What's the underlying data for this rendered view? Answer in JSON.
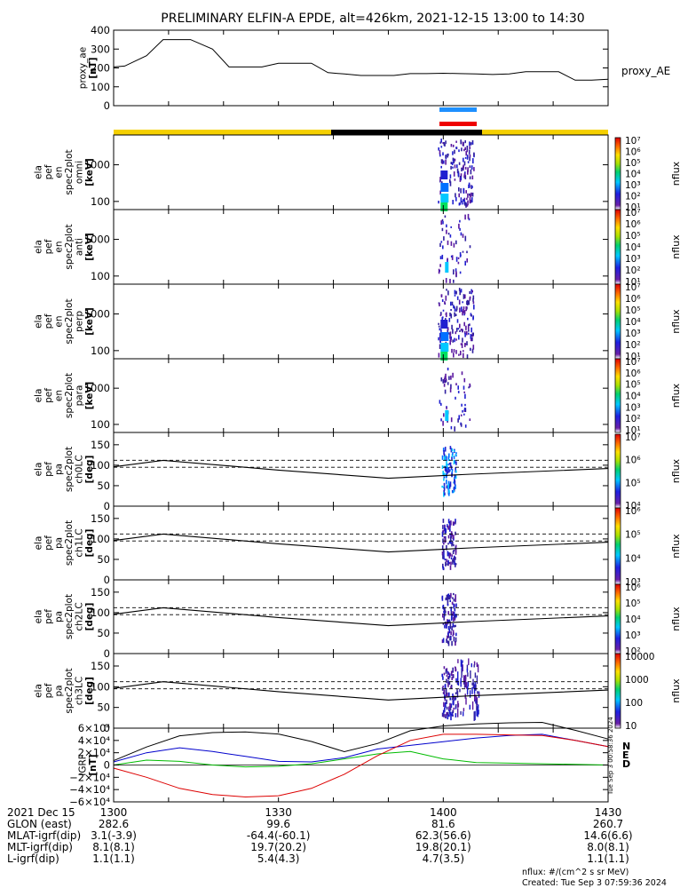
{
  "chart_data": {
    "type": "spectrogram",
    "title": "PRELIMINARY ELFIN-A EPDE, alt=426km, 2021-12-15 13:00 to 14:30",
    "xlim": [
      "2021-12-15 13:00",
      "2021-12-15 14:30"
    ],
    "colors": {
      "science_zone": "#1e90ff",
      "state_bar": "#ee0000",
      "phase_day": "#f5d000",
      "phase_night": "#000000",
      "igrf_n": "#0000cc",
      "igrf_e": "#00bb00",
      "igrf_d": "#dd0000"
    },
    "panels": [
      {
        "id": "proxy_ae",
        "type": "line",
        "ylabel_lines": [
          "proxy_ae",
          "[nT]"
        ],
        "ylim": [
          0,
          400
        ],
        "yticks": [
          "400",
          "300",
          "200",
          "100",
          "0"
        ],
        "legend": "proxy_AE",
        "x": [
          "13:00",
          "13:02",
          "13:06",
          "13:09",
          "13:12",
          "13:14",
          "13:18",
          "13:21",
          "13:24",
          "13:27",
          "13:30",
          "13:33",
          "13:36",
          "13:39",
          "13:42",
          "13:45",
          "13:48",
          "13:51",
          "13:54",
          "13:57",
          "14:00",
          "14:03",
          "14:06",
          "14:09",
          "14:12",
          "14:15",
          "14:18",
          "14:21",
          "14:24",
          "14:27",
          "14:30"
        ],
        "values": [
          205,
          210,
          265,
          350,
          350,
          350,
          300,
          205,
          205,
          205,
          225,
          225,
          225,
          175,
          168,
          160,
          160,
          160,
          170,
          170,
          172,
          170,
          168,
          165,
          168,
          180,
          180,
          180,
          135,
          135,
          140
        ]
      },
      {
        "id": "en_omni",
        "type": "spectrogram",
        "ylabel_lines": [
          "ela",
          "pef",
          "en",
          "spec2plot",
          "omni",
          "[keV]"
        ],
        "yscale": "log",
        "ylim": [
          60,
          6500
        ],
        "yticks": [
          "1000",
          "100"
        ],
        "colorbar_label": "nflux",
        "colorbar_range": [
          "10¹",
          "10⁷"
        ],
        "colorbar_ticks": [
          "10⁷",
          "10⁶",
          "10⁵",
          "10⁴",
          "10³",
          "10²",
          "10¹"
        ],
        "burst_time": "14:00"
      },
      {
        "id": "en_anti",
        "type": "spectrogram",
        "ylabel_lines": [
          "ela",
          "pef",
          "en",
          "spec2plot",
          "anti",
          "[keV]"
        ],
        "yscale": "log",
        "ylim": [
          60,
          6500
        ],
        "yticks": [
          "1000",
          "100"
        ],
        "colorbar_label": "nflux",
        "colorbar_range": [
          "10¹",
          "10⁷"
        ],
        "colorbar_ticks": [
          "10⁷",
          "10⁶",
          "10⁵",
          "10⁴",
          "10³",
          "10²",
          "10¹"
        ],
        "burst_time": "14:00"
      },
      {
        "id": "en_perp",
        "type": "spectrogram",
        "ylabel_lines": [
          "ela",
          "pef",
          "en",
          "spec2plot",
          "perp",
          "[keV]"
        ],
        "yscale": "log",
        "ylim": [
          60,
          6500
        ],
        "yticks": [
          "1000",
          "100"
        ],
        "colorbar_label": "nflux",
        "colorbar_range": [
          "10¹",
          "10⁷"
        ],
        "colorbar_ticks": [
          "10⁷",
          "10⁶",
          "10⁵",
          "10⁴",
          "10³",
          "10²",
          "10¹"
        ],
        "burst_time": "14:00"
      },
      {
        "id": "en_para",
        "type": "spectrogram",
        "ylabel_lines": [
          "ela",
          "pef",
          "en",
          "spec2plot",
          "para",
          "[keV]"
        ],
        "yscale": "log",
        "ylim": [
          60,
          6500
        ],
        "yticks": [
          "1000",
          "100"
        ],
        "colorbar_label": "nflux",
        "colorbar_range": [
          "10¹",
          "10⁷"
        ],
        "colorbar_ticks": [
          "10⁷",
          "10⁶",
          "10⁵",
          "10⁴",
          "10³",
          "10²",
          "10¹"
        ],
        "burst_time": "14:00"
      },
      {
        "id": "pa_ch0LC",
        "type": "pitch_angle",
        "ylabel_lines": [
          "ela",
          "pef",
          "pa",
          "spec2plot",
          "ch0LC",
          "[deg]"
        ],
        "ylim": [
          0,
          180
        ],
        "yticks": [
          "150",
          "100",
          "50",
          "0"
        ],
        "colorbar_label": "nflux",
        "colorbar_range": [
          "10³",
          "10⁷"
        ],
        "colorbar_ticks": [
          "10⁷",
          "10⁶",
          "10⁵",
          "10⁴"
        ],
        "burst_time": "14:00"
      },
      {
        "id": "pa_ch1LC",
        "type": "pitch_angle",
        "ylabel_lines": [
          "ela",
          "pef",
          "pa",
          "spec2plot",
          "ch1LC",
          "[deg]"
        ],
        "ylim": [
          0,
          180
        ],
        "yticks": [
          "150",
          "100",
          "50",
          "0"
        ],
        "colorbar_label": "nflux",
        "colorbar_range": [
          "10³",
          "10⁶"
        ],
        "colorbar_ticks": [
          "10⁶",
          "10⁵",
          "10⁴",
          "10³"
        ],
        "burst_time": "14:00"
      },
      {
        "id": "pa_ch2LC",
        "type": "pitch_angle",
        "ylabel_lines": [
          "ela",
          "pef",
          "pa",
          "spec2plot",
          "ch2LC",
          "[deg]"
        ],
        "ylim": [
          0,
          180
        ],
        "yticks": [
          "150",
          "100",
          "50",
          "0"
        ],
        "colorbar_label": "nflux",
        "colorbar_range": [
          "10²",
          "10⁶"
        ],
        "colorbar_ticks": [
          "10⁶",
          "10⁵",
          "10⁴",
          "10³",
          "10²"
        ],
        "burst_time": "14:00"
      },
      {
        "id": "pa_ch3LC",
        "type": "pitch_angle",
        "ylabel_lines": [
          "ela",
          "pef",
          "pa",
          "spec2plot",
          "ch3LC",
          "[deg]"
        ],
        "ylim": [
          0,
          180
        ],
        "yticks": [
          "150",
          "100",
          "50",
          "0"
        ],
        "colorbar_label": "nflux",
        "colorbar_range": [
          "10",
          "10000"
        ],
        "colorbar_ticks": [
          "10000",
          "1000",
          "100",
          "10"
        ],
        "burst_time": "14:00"
      },
      {
        "id": "igrf",
        "type": "line",
        "ylabel_lines": [
          "IGRF",
          "[nT]"
        ],
        "ylim": [
          -60000,
          60000
        ],
        "yticks": [
          "6×10⁴",
          "4×10⁴",
          "2×10⁴",
          "0",
          "−2×10⁴",
          "−4×10⁴",
          "−6×10⁴"
        ],
        "legend": [
          "N",
          "E",
          "D"
        ],
        "x": [
          "13:00",
          "13:06",
          "13:12",
          "13:18",
          "13:24",
          "13:30",
          "13:36",
          "13:42",
          "13:48",
          "13:54",
          "14:00",
          "14:06",
          "14:12",
          "14:18",
          "14:24",
          "14:30"
        ],
        "series": [
          {
            "name": "N",
            "values": [
              5000,
              20000,
              28000,
              22000,
              14000,
              6000,
              5000,
              12000,
              26000,
              32000,
              38000,
              44000,
              48000,
              50000,
              40000,
              30000
            ]
          },
          {
            "name": "E",
            "values": [
              0,
              8000,
              6000,
              0,
              -3000,
              -2000,
              2000,
              10000,
              18000,
              22000,
              10000,
              4000,
              3000,
              2000,
              1000,
              0
            ]
          },
          {
            "name": "D",
            "values": [
              -5000,
              -20000,
              -38000,
              -48000,
              -52000,
              -50000,
              -38000,
              -15000,
              15000,
              40000,
              50000,
              50000,
              49000,
              48000,
              40000,
              30000
            ]
          }
        ]
      }
    ],
    "dashed_reference": [
      95,
      112
    ],
    "ephemeris": {
      "header": "2021 Dec 15",
      "times": [
        "1300",
        "1330",
        "1400",
        "1430"
      ],
      "rows": [
        {
          "label": "GLON (east)",
          "values": [
            "282.6",
            "99.6",
            "81.6",
            "260.7"
          ]
        },
        {
          "label": "MLAT-igrf(dip)",
          "values": [
            "3.1(-3.9)",
            "-64.4(-60.1)",
            "62.3(56.6)",
            "14.6(6.6)"
          ]
        },
        {
          "label": "MLT-igrf(dip)",
          "values": [
            "8.1(8.1)",
            "19.7(20.2)",
            "19.8(20.1)",
            "8.0(8.1)"
          ]
        },
        {
          "label": "L-igrf(dip)",
          "values": [
            "1.1(1.1)",
            "5.4(4.3)",
            "4.7(3.5)",
            "1.1(1.1)"
          ]
        }
      ]
    },
    "footer": {
      "units": "nflux: #/(cm^2 s sr MeV)",
      "created": "Created: Tue Sep  3 07:59:36 2024",
      "side_stamp": "Tue Sep  3 00:58:36 2024"
    }
  }
}
